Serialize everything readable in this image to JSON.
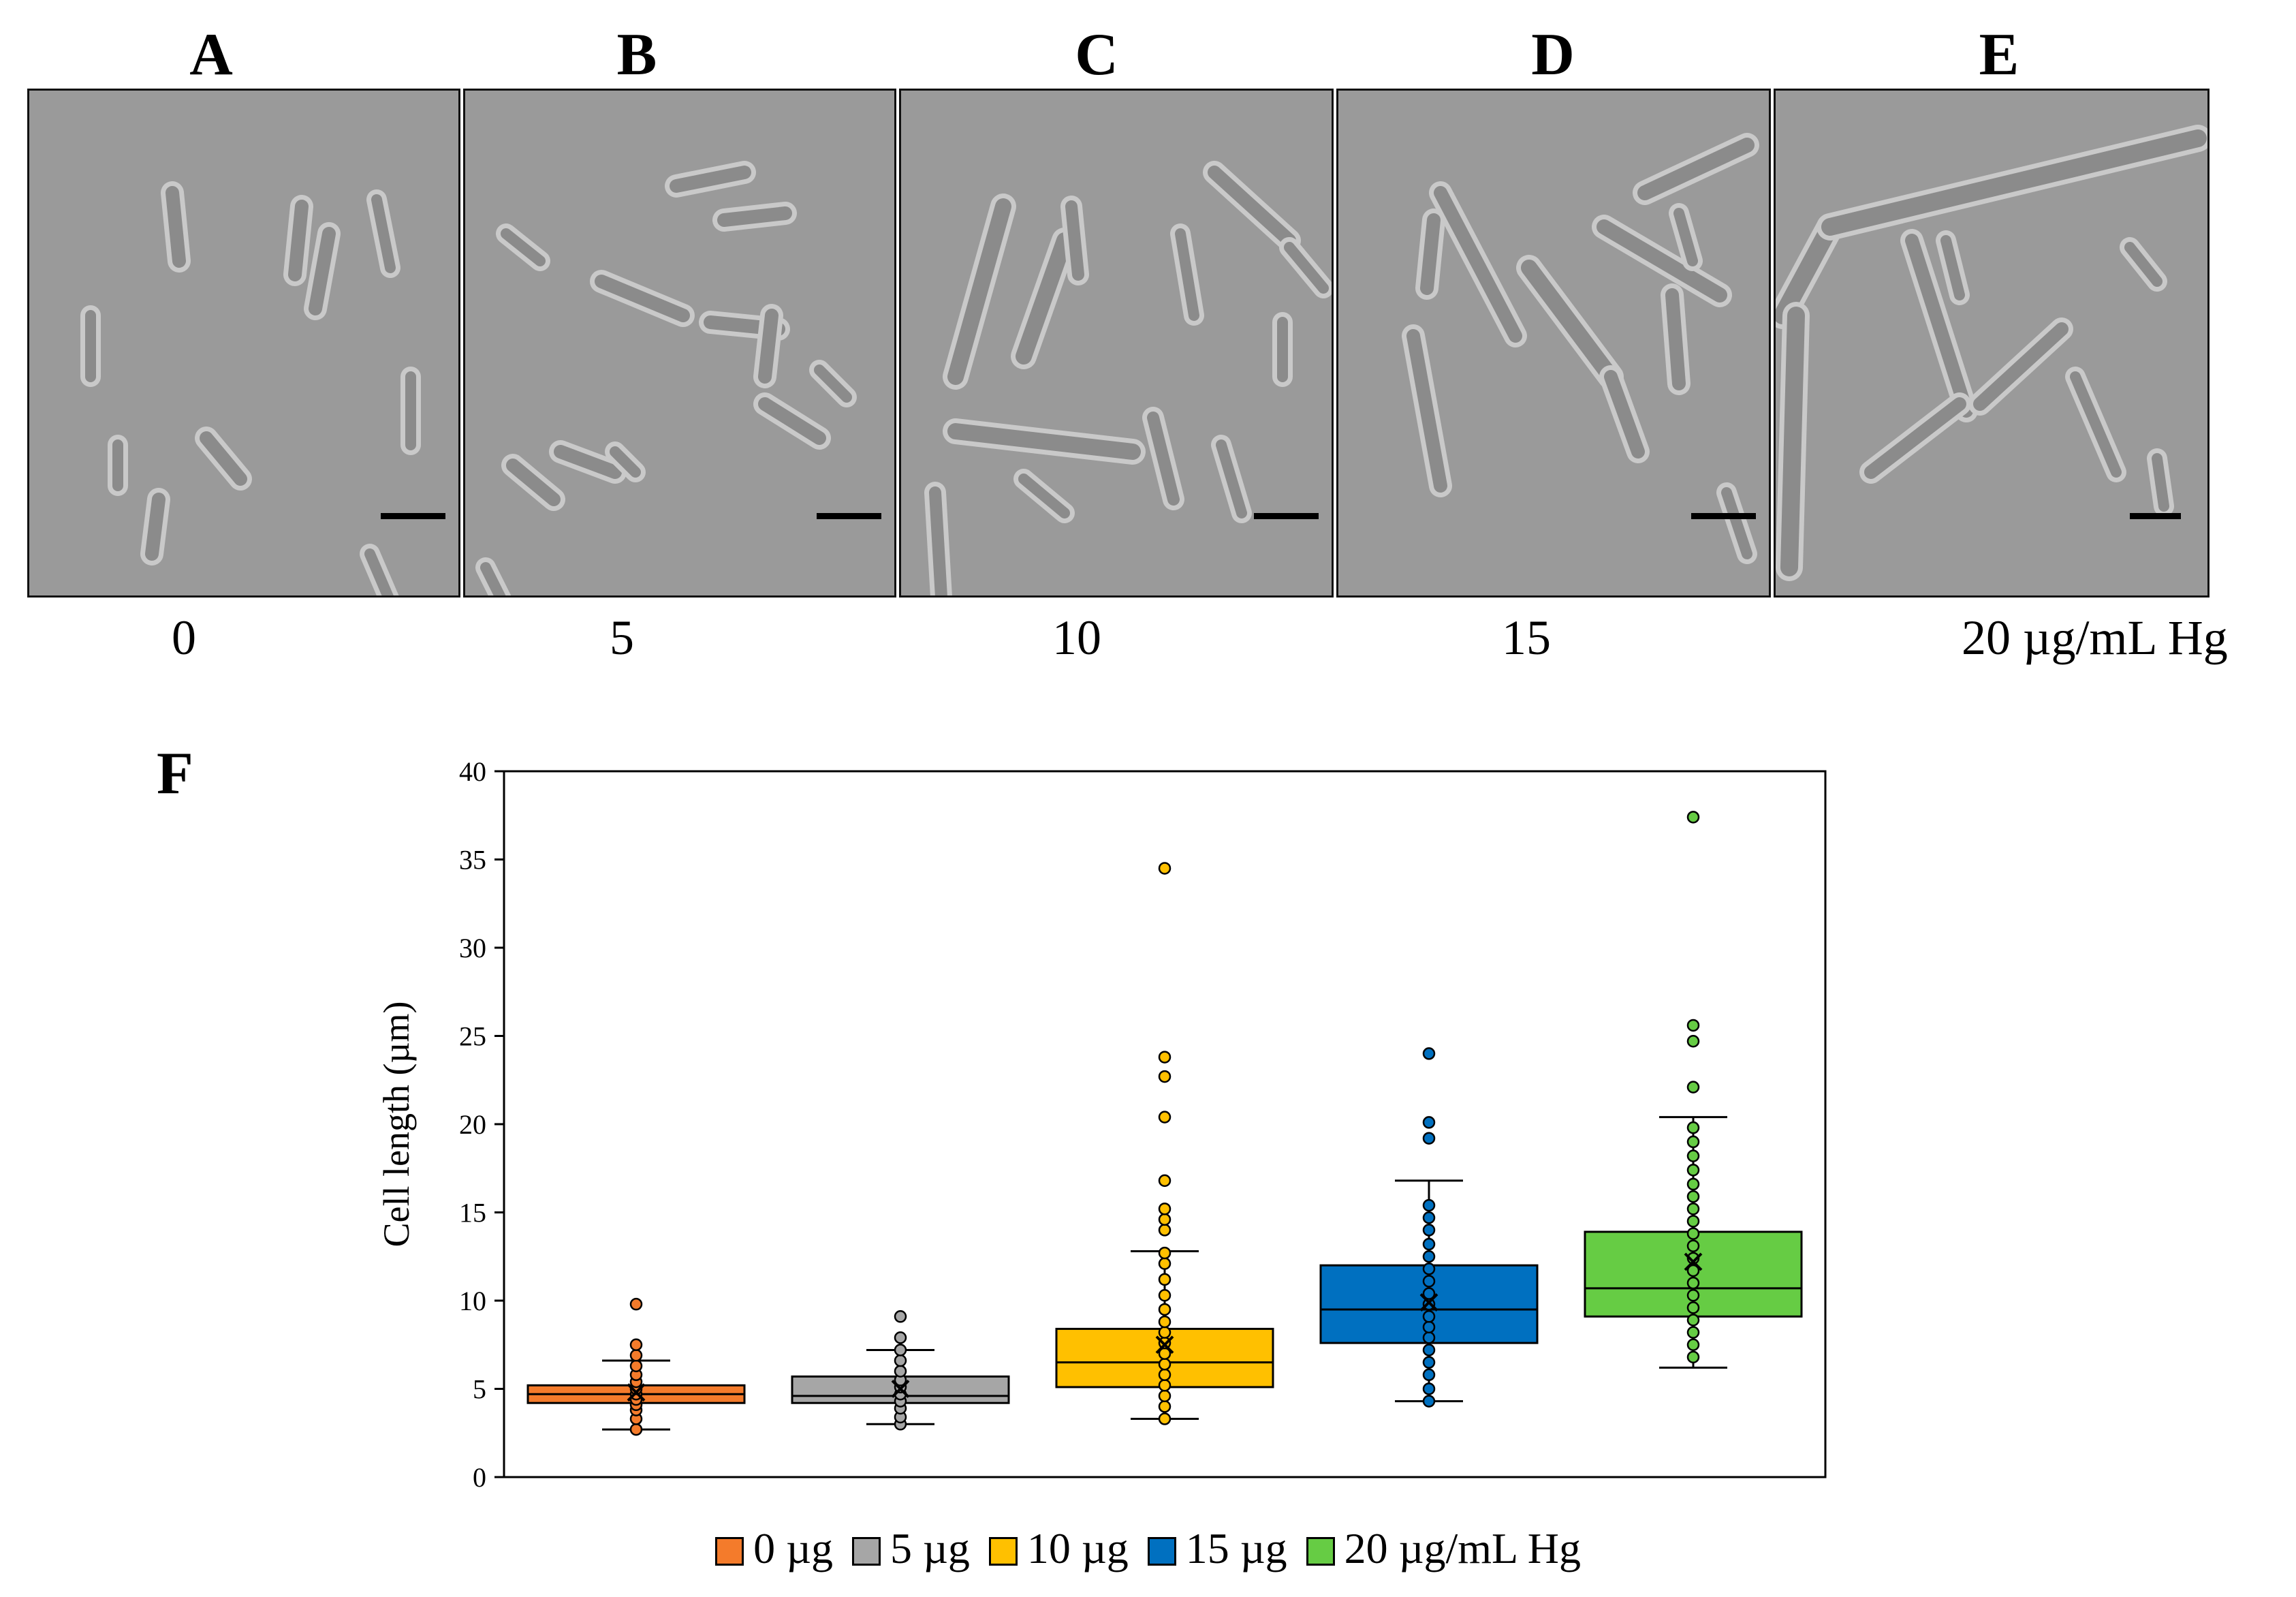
{
  "panels": [
    {
      "letter": "A",
      "concentration": "0"
    },
    {
      "letter": "B",
      "concentration": "5"
    },
    {
      "letter": "C",
      "concentration": "10"
    },
    {
      "letter": "D",
      "concentration": "15"
    },
    {
      "letter": "E",
      "concentration": "20 µg/mL Hg"
    }
  ],
  "chart_label": "F",
  "chart_data": {
    "type": "box",
    "ylabel": "Cell length (µm)",
    "ylim": [
      0,
      40
    ],
    "yticks": [
      0,
      5,
      10,
      15,
      20,
      25,
      30,
      35,
      40
    ],
    "series": [
      {
        "name": "0 µg",
        "color": "#F47B2B",
        "whisker_low": 2.7,
        "q1": 4.2,
        "median": 4.7,
        "q3": 5.2,
        "whisker_high": 6.6,
        "mean": 4.8,
        "points": [
          2.7,
          3.3,
          3.8,
          4.1,
          4.4,
          4.7,
          5.0,
          5.4,
          5.8,
          6.3,
          6.9,
          7.5,
          9.8
        ]
      },
      {
        "name": "5 µg",
        "color": "#A6A6A6",
        "whisker_low": 3.0,
        "q1": 4.2,
        "median": 4.6,
        "q3": 5.7,
        "whisker_high": 7.2,
        "mean": 5.0,
        "points": [
          3.0,
          3.4,
          3.9,
          4.3,
          4.7,
          5.1,
          5.5,
          6.0,
          6.6,
          7.2,
          7.9,
          9.1
        ]
      },
      {
        "name": "10 µg",
        "color": "#FFC000",
        "whisker_low": 3.3,
        "q1": 5.1,
        "median": 6.5,
        "q3": 8.4,
        "whisker_high": 12.8,
        "mean": 7.5,
        "points": [
          3.3,
          4.0,
          4.6,
          5.2,
          5.8,
          6.4,
          7.0,
          7.6,
          8.2,
          8.8,
          9.5,
          10.3,
          11.2,
          12.1,
          12.7,
          14.0,
          14.6,
          15.2,
          16.8,
          20.4,
          22.7,
          23.8,
          34.5
        ]
      },
      {
        "name": "15 µg",
        "color": "#0070C0",
        "whisker_low": 4.3,
        "q1": 7.6,
        "median": 9.5,
        "q3": 12.0,
        "whisker_high": 16.8,
        "mean": 9.9,
        "points": [
          4.3,
          5.0,
          5.8,
          6.5,
          7.2,
          7.9,
          8.5,
          9.1,
          9.8,
          10.4,
          11.1,
          11.8,
          12.5,
          13.2,
          14.0,
          14.7,
          15.4,
          19.2,
          20.1,
          24.0
        ]
      },
      {
        "name": "20 µg/mL Hg",
        "color": "#66CC44",
        "whisker_low": 6.2,
        "q1": 9.1,
        "median": 10.7,
        "q3": 13.9,
        "whisker_high": 20.4,
        "mean": 12.2,
        "points": [
          6.8,
          7.5,
          8.2,
          8.9,
          9.6,
          10.3,
          11.0,
          11.7,
          12.4,
          13.1,
          13.8,
          14.5,
          15.2,
          15.9,
          16.6,
          17.4,
          18.2,
          19.0,
          19.8,
          22.1,
          24.7,
          25.6,
          37.4
        ]
      }
    ]
  }
}
